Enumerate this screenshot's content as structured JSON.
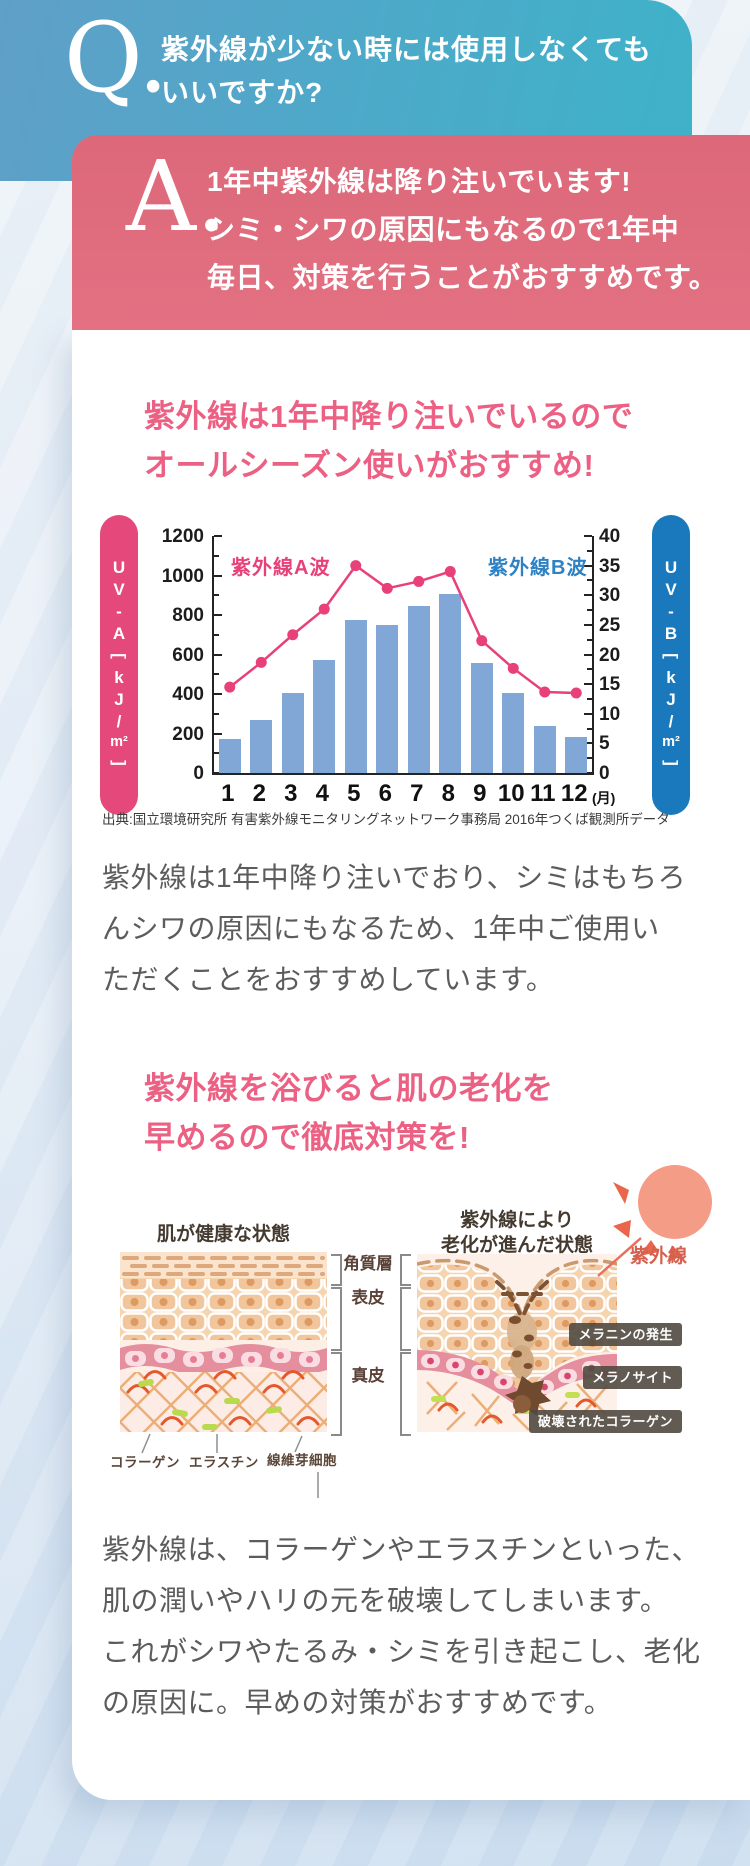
{
  "qa": {
    "q_letter": "Q.",
    "q_lines": [
      "紫外線が少ない時には使用しなくても",
      "いいですか?"
    ],
    "a_letter": "A.",
    "a_lines": [
      "1年中紫外線は降り注いでいます!",
      "シミ・シワの原因にもなるので1年中",
      "毎日、対策を行うことがおすすめです。"
    ]
  },
  "section1": {
    "heading_lines": [
      "紫外線は1年中降り注いでいるので",
      "オールシーズン使いがおすすめ!"
    ],
    "source": "出典:国立環境研究所 有害紫外線モニタリングネットワーク事務局 2016年つくば観測所データ",
    "body_lines": [
      "紫外線は1年中降り注いでおり、シミはもちろ",
      "んシワの原因にもなるため、1年中ご使用い",
      "ただくことをおすすめしています。"
    ]
  },
  "chart_data": {
    "type": "bar",
    "subtype": "bar+line dual axis",
    "categories": [
      "1",
      "2",
      "3",
      "4",
      "5",
      "6",
      "7",
      "8",
      "9",
      "10",
      "11",
      "12"
    ],
    "x_unit_label": "(月)",
    "series": [
      {
        "name": "紫外線A波",
        "type": "line",
        "axis": "left",
        "color": "#e8417a",
        "values": [
          435,
          560,
          700,
          830,
          1050,
          935,
          970,
          1020,
          670,
          530,
          410,
          405
        ]
      },
      {
        "name": "紫外線B波",
        "type": "bar",
        "axis": "right",
        "color": "#81a7d6",
        "values": [
          5.7,
          9,
          13.5,
          19,
          25.8,
          25,
          28.2,
          30.2,
          18.5,
          13.5,
          7.9,
          6.1
        ]
      }
    ],
    "left_axis": {
      "label": "UV-A(kJ/m²)",
      "min": 0,
      "max": 1200,
      "step": 200
    },
    "right_axis": {
      "label": "UV-B(kJ/m²)",
      "min": 0,
      "max": 40,
      "step": 5
    },
    "grid": false,
    "legend_position": "inside-top",
    "pill_left": {
      "chars": [
        "U",
        "V",
        "-",
        "A"
      ],
      "unit": [
        "[",
        "k",
        "J",
        "/",
        "m²",
        "]"
      ],
      "color": "#e5497b"
    },
    "pill_right": {
      "chars": [
        "U",
        "V",
        "-",
        "B"
      ],
      "unit": [
        "[",
        "k",
        "J",
        "/",
        "m²",
        "]"
      ],
      "color": "#1a79bd"
    }
  },
  "section2": {
    "heading_lines": [
      "紫外線を浴びると肌の老化を",
      "早めるので徹底対策を!"
    ],
    "body_lines": [
      "紫外線は、コラーゲンやエラスチンといった、",
      "肌の潤いやハリの元を破壊してしまいます。",
      "これがシワやたるみ・シミを引き起こし、老化",
      "の原因に。早めの対策がおすすめです。"
    ]
  },
  "diagram": {
    "caption_left": "肌が健康な状態",
    "caption_right_lines": [
      "紫外線により",
      "老化が進んだ状態"
    ],
    "uv_ray_label": "紫外線",
    "layer_labels": [
      "角質層",
      "表皮",
      "真皮"
    ],
    "badges": [
      "メラニンの発生",
      "メラノサイト",
      "破壊されたコラーゲン"
    ],
    "part_labels": [
      "コラーゲン",
      "エラスチン",
      "線維芽細胞"
    ]
  },
  "colors": {
    "q_gradient_start": "#5f9fc8",
    "q_gradient_end": "#3eb2c9",
    "a_background": "#e06e7f",
    "heading_pink": "#ec6083",
    "uva_line_pink": "#e8417a",
    "uvb_bar_blue": "#81a7d6",
    "uvb_legend_blue": "#2e82c4",
    "pill_left_bg": "#e5497b",
    "pill_right_bg": "#1a79bd",
    "body_text": "#5c5c5c",
    "badge_bg": "#50493f",
    "uv_ray_coral": "#d4614e",
    "page_background": "#d8e5f2"
  }
}
